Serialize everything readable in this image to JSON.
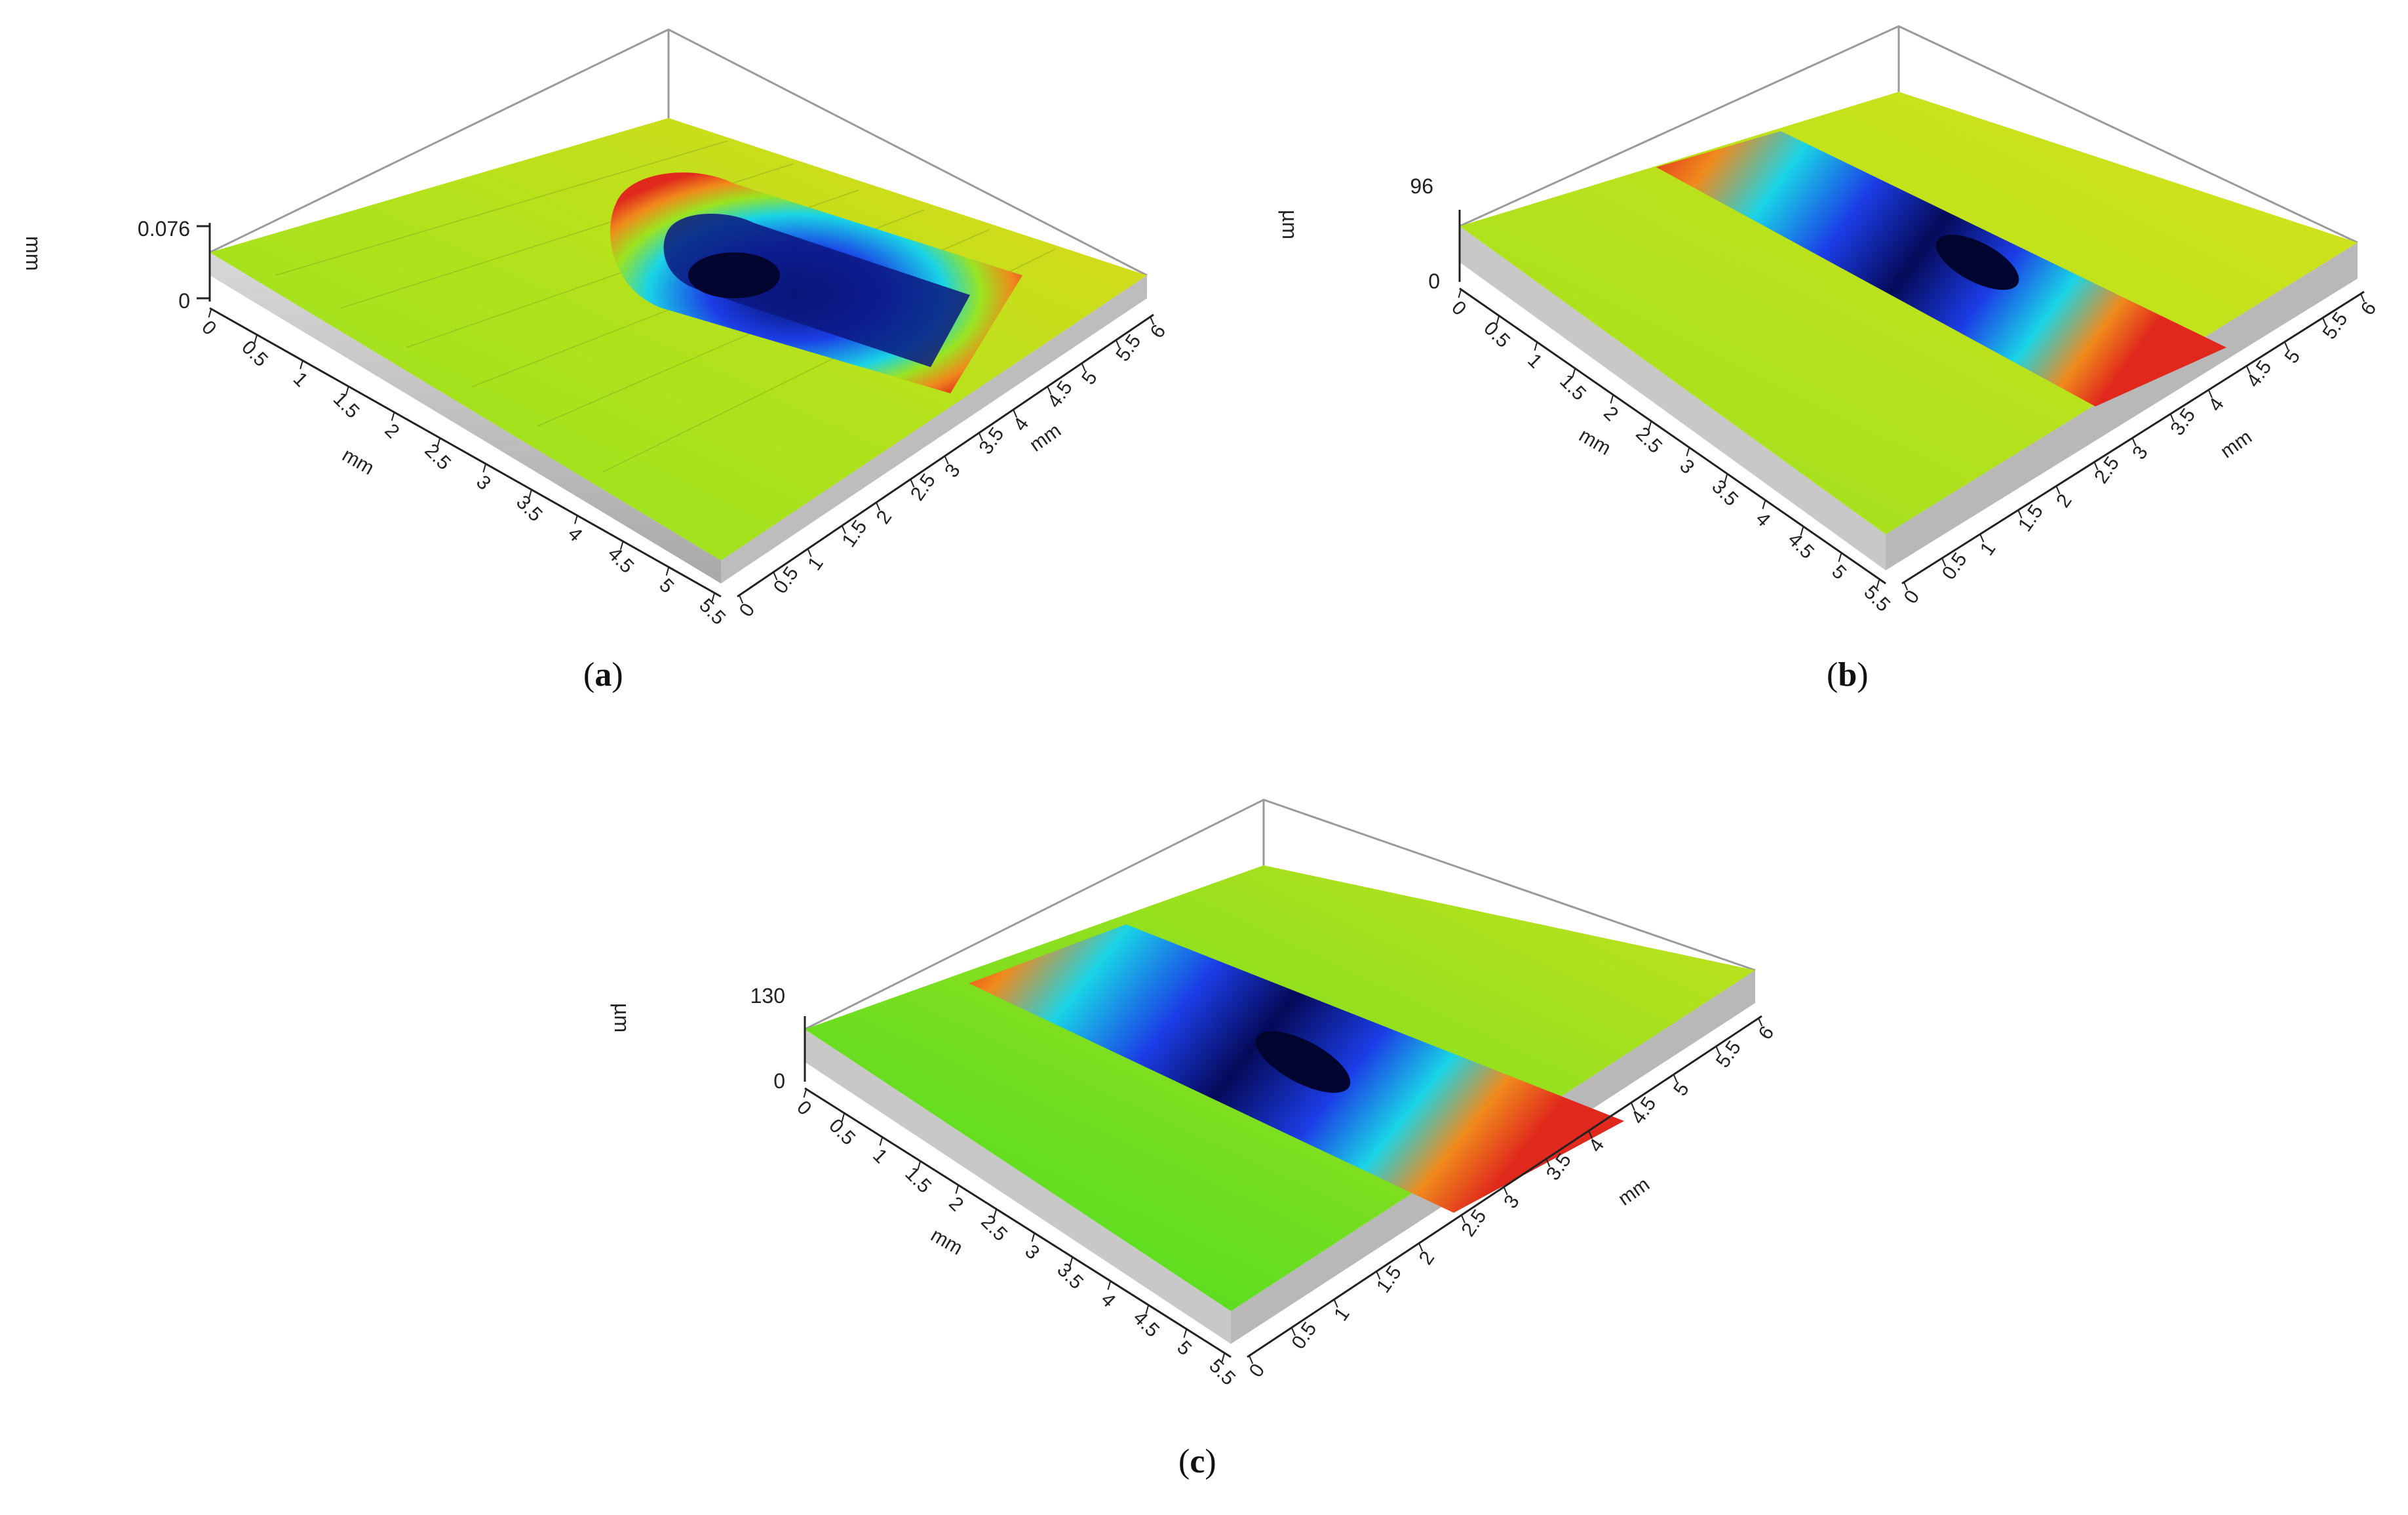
{
  "figure": {
    "panels": [
      {
        "id": "a",
        "label": "a",
        "z_axis": {
          "unit": "mm",
          "max_label": "0.076",
          "min_label": "0"
        },
        "x_axis": {
          "unit": "mm",
          "ticks": [
            "0",
            "0.5",
            "1",
            "1.5",
            "2",
            "2.5",
            "3",
            "3.5",
            "4",
            "4.5",
            "5",
            "5.5"
          ]
        },
        "y_axis": {
          "unit": "mm",
          "ticks": [
            "0",
            "0.5",
            "1",
            "1.5",
            "2",
            "2.5",
            "3",
            "3.5",
            "4",
            "4.5",
            "5",
            "5.5",
            "6"
          ]
        },
        "feature": "u-shaped-groove"
      },
      {
        "id": "b",
        "label": "b",
        "z_axis": {
          "unit": "µm",
          "max_label": "96",
          "min_label": "0"
        },
        "x_axis": {
          "unit": "mm",
          "ticks": [
            "0",
            "0.5",
            "1",
            "1.5",
            "2",
            "2.5",
            "3",
            "3.5",
            "4",
            "4.5",
            "5",
            "5.5"
          ]
        },
        "y_axis": {
          "unit": "mm",
          "ticks": [
            "0",
            "0.5",
            "1",
            "1.5",
            "2",
            "2.5",
            "3",
            "3.5",
            "4",
            "4.5",
            "5",
            "5.5",
            "6"
          ]
        },
        "feature": "through-groove-narrow"
      },
      {
        "id": "c",
        "label": "c",
        "z_axis": {
          "unit": "µm",
          "max_label": "130",
          "min_label": "0"
        },
        "x_axis": {
          "unit": "mm",
          "ticks": [
            "0",
            "0.5",
            "1",
            "1.5",
            "2",
            "2.5",
            "3",
            "3.5",
            "4",
            "4.5",
            "5",
            "5.5"
          ]
        },
        "y_axis": {
          "unit": "mm",
          "ticks": [
            "0",
            "0.5",
            "1",
            "1.5",
            "2",
            "2.5",
            "3",
            "3.5",
            "4",
            "4.5",
            "5",
            "5.5",
            "6"
          ]
        },
        "feature": "through-groove-wide"
      }
    ],
    "colors": {
      "surface_high": "#d8e21a",
      "surface_mid": "#8fe11f",
      "rim_orange": "#f08a1c",
      "rim_red": "#e0281c",
      "groove_cyan": "#19d4e6",
      "groove_blue": "#1b3de6",
      "groove_deep": "#050a58",
      "side_wall": "#c6c6c6"
    }
  }
}
